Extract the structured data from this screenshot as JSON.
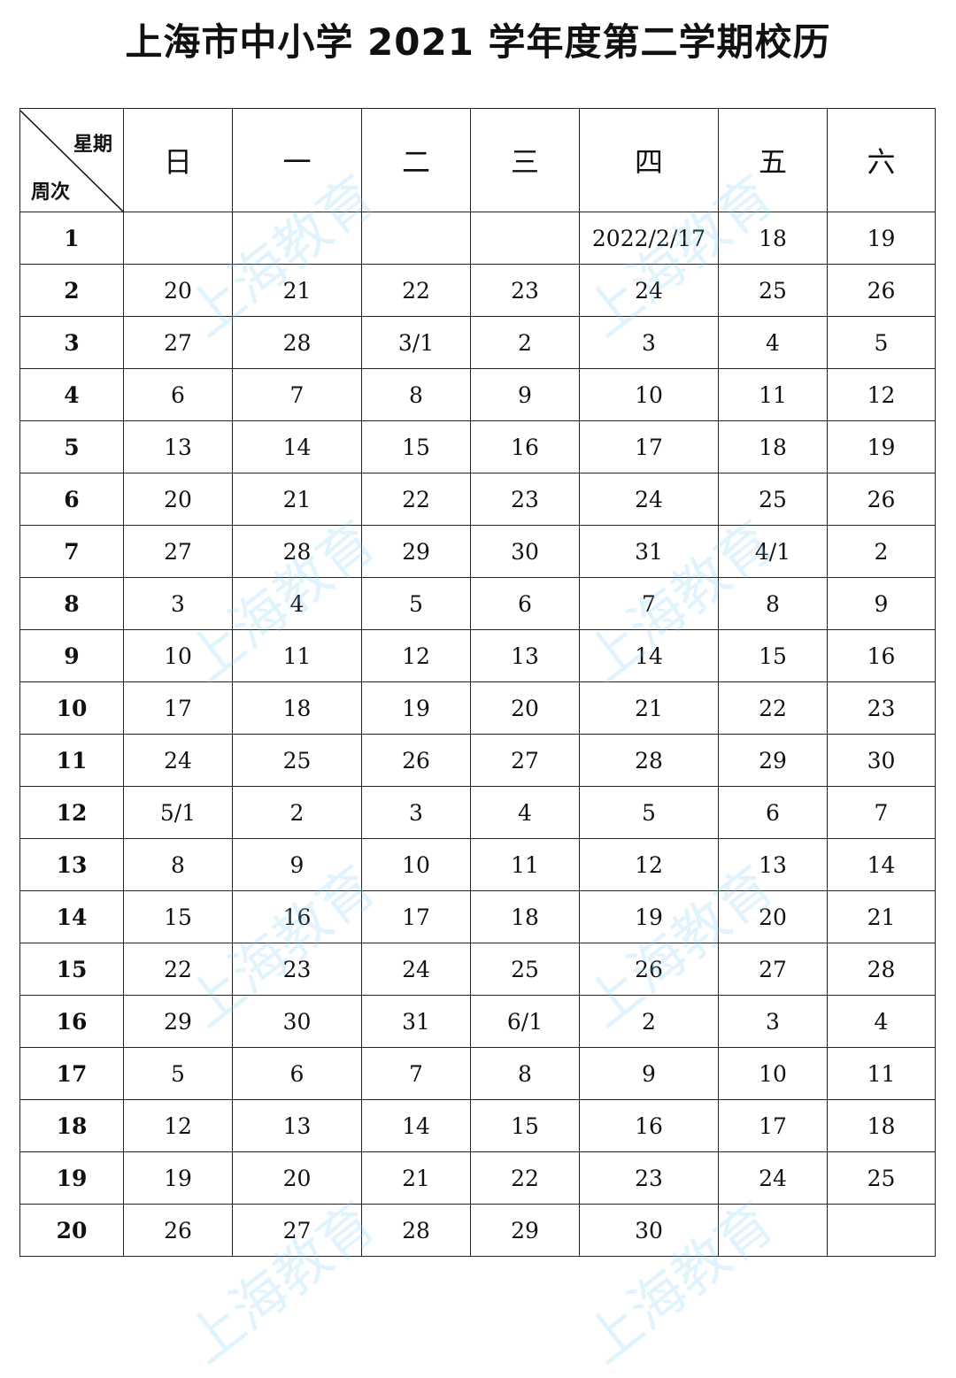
{
  "title": "上海市中小学 2021 学年度第二学期校历",
  "corner": {
    "top": "星期",
    "bottom": "周次"
  },
  "days": [
    "日",
    "一",
    "二",
    "三",
    "四",
    "五",
    "六"
  ],
  "watermark": "上海教育",
  "weeks": [
    {
      "week": "1",
      "dates": [
        "",
        "",
        "",
        "",
        "2022/2/17",
        "18",
        "19"
      ]
    },
    {
      "week": "2",
      "dates": [
        "20",
        "21",
        "22",
        "23",
        "24",
        "25",
        "26"
      ]
    },
    {
      "week": "3",
      "dates": [
        "27",
        "28",
        "3/1",
        "2",
        "3",
        "4",
        "5"
      ]
    },
    {
      "week": "4",
      "dates": [
        "6",
        "7",
        "8",
        "9",
        "10",
        "11",
        "12"
      ]
    },
    {
      "week": "5",
      "dates": [
        "13",
        "14",
        "15",
        "16",
        "17",
        "18",
        "19"
      ]
    },
    {
      "week": "6",
      "dates": [
        "20",
        "21",
        "22",
        "23",
        "24",
        "25",
        "26"
      ]
    },
    {
      "week": "7",
      "dates": [
        "27",
        "28",
        "29",
        "30",
        "31",
        "4/1",
        "2"
      ]
    },
    {
      "week": "8",
      "dates": [
        "3",
        "4",
        "5",
        "6",
        "7",
        "8",
        "9"
      ]
    },
    {
      "week": "9",
      "dates": [
        "10",
        "11",
        "12",
        "13",
        "14",
        "15",
        "16"
      ]
    },
    {
      "week": "10",
      "dates": [
        "17",
        "18",
        "19",
        "20",
        "21",
        "22",
        "23"
      ]
    },
    {
      "week": "11",
      "dates": [
        "24",
        "25",
        "26",
        "27",
        "28",
        "29",
        "30"
      ]
    },
    {
      "week": "12",
      "dates": [
        "5/1",
        "2",
        "3",
        "4",
        "5",
        "6",
        "7"
      ]
    },
    {
      "week": "13",
      "dates": [
        "8",
        "9",
        "10",
        "11",
        "12",
        "13",
        "14"
      ]
    },
    {
      "week": "14",
      "dates": [
        "15",
        "16",
        "17",
        "18",
        "19",
        "20",
        "21"
      ]
    },
    {
      "week": "15",
      "dates": [
        "22",
        "23",
        "24",
        "25",
        "26",
        "27",
        "28"
      ]
    },
    {
      "week": "16",
      "dates": [
        "29",
        "30",
        "31",
        "6/1",
        "2",
        "3",
        "4"
      ]
    },
    {
      "week": "17",
      "dates": [
        "5",
        "6",
        "7",
        "8",
        "9",
        "10",
        "11"
      ]
    },
    {
      "week": "18",
      "dates": [
        "12",
        "13",
        "14",
        "15",
        "16",
        "17",
        "18"
      ]
    },
    {
      "week": "19",
      "dates": [
        "19",
        "20",
        "21",
        "22",
        "23",
        "24",
        "25"
      ]
    },
    {
      "week": "20",
      "dates": [
        "26",
        "27",
        "28",
        "29",
        "30",
        "",
        ""
      ]
    }
  ]
}
